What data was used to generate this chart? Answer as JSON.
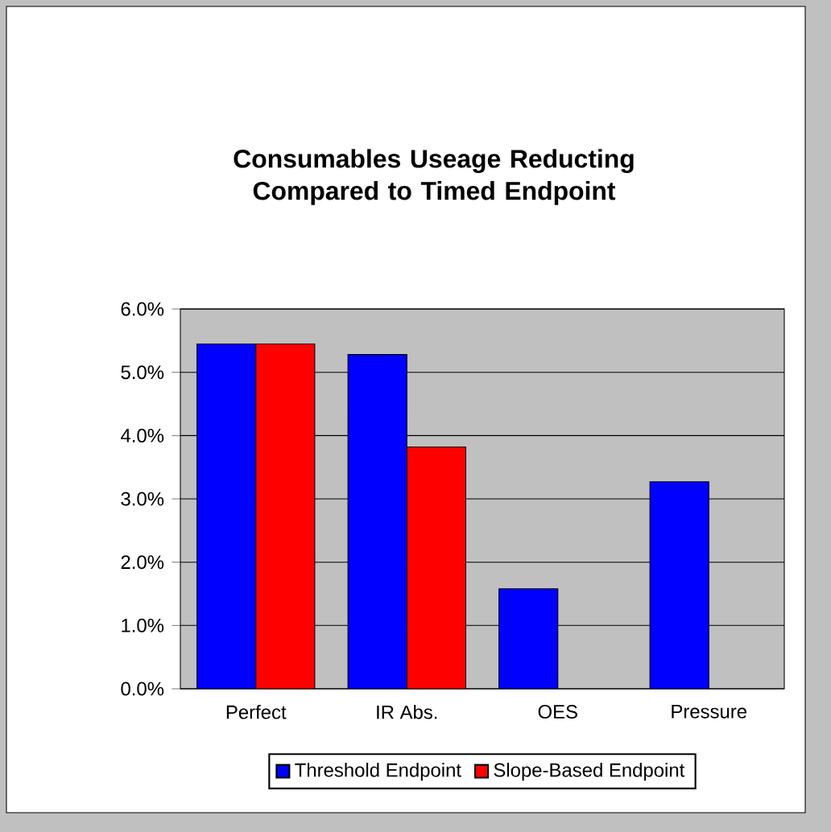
{
  "chart_data": {
    "type": "bar",
    "title": "Consumables Useage Reducting Compared to Timed Endpoint",
    "categories": [
      "Perfect",
      "IR Abs.",
      "OES",
      "Pressure"
    ],
    "series": [
      {
        "name": "Threshold Endpoint",
        "color": "#0000ff",
        "values": [
          5.45,
          5.28,
          1.58,
          3.27
        ]
      },
      {
        "name": "Slope-Based Endpoint",
        "color": "#ff0000",
        "values": [
          5.45,
          3.82,
          null,
          null
        ]
      }
    ],
    "ylim": [
      0,
      6
    ],
    "yticks": [
      {
        "value": 0,
        "label": "0.0%"
      },
      {
        "value": 1,
        "label": "1.0%"
      },
      {
        "value": 2,
        "label": "2.0%"
      },
      {
        "value": 3,
        "label": "3.0%"
      },
      {
        "value": 4,
        "label": "4.0%"
      },
      {
        "value": 5,
        "label": "5.0%"
      },
      {
        "value": 6,
        "label": "6.0%"
      }
    ],
    "grid": "y",
    "legend": "bottom"
  }
}
